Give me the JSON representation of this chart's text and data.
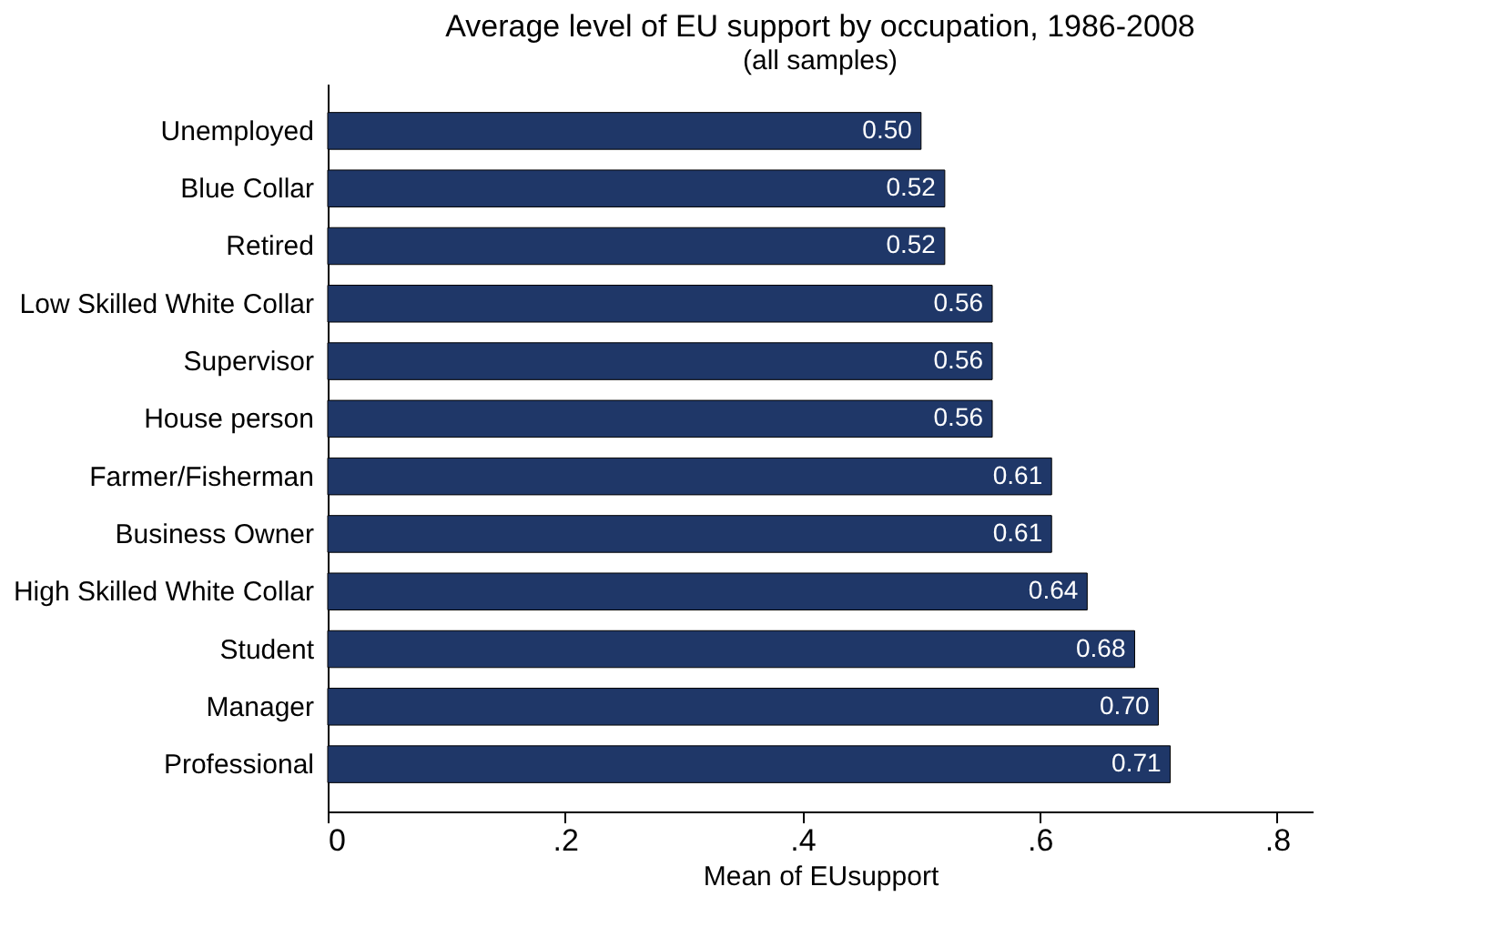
{
  "chart_data": {
    "type": "bar",
    "orientation": "horizontal",
    "title": "Average level of EU support by occupation, 1986-2008",
    "subtitle": "(all samples)",
    "xlabel": "Mean of EUsupport",
    "categories": [
      "Unemployed",
      "Blue Collar",
      "Retired",
      "Low Skilled White Collar",
      "Supervisor",
      "House person",
      "Farmer/Fisherman",
      "Business Owner",
      "High Skilled White Collar",
      "Student",
      "Manager",
      "Professional"
    ],
    "values": [
      0.5,
      0.52,
      0.52,
      0.56,
      0.56,
      0.56,
      0.61,
      0.61,
      0.64,
      0.68,
      0.7,
      0.71
    ],
    "value_labels": [
      "0.50",
      "0.52",
      "0.52",
      "0.56",
      "0.56",
      "0.56",
      "0.61",
      "0.61",
      "0.64",
      "0.68",
      "0.70",
      "0.71"
    ],
    "color": "#1f3768",
    "xlim": [
      0,
      0.83
    ],
    "xticks": [
      {
        "value": 0,
        "label": "0"
      },
      {
        "value": 0.2,
        "label": ".2"
      },
      {
        "value": 0.4,
        "label": ".4"
      },
      {
        "value": 0.6,
        "label": ".6"
      },
      {
        "value": 0.8,
        "label": ".8"
      }
    ],
    "grid": false
  }
}
